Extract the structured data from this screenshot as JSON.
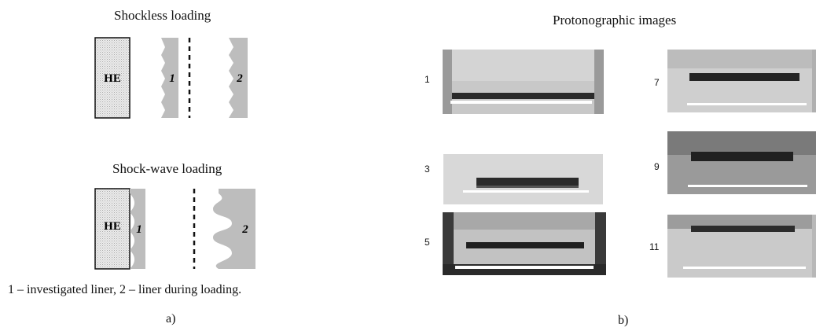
{
  "panel_a": {
    "shockless_title": "Shockless loading",
    "shockwave_title": "Shock-wave loading",
    "he_label": "HE",
    "liner1_label": "1",
    "liner2_label": "2",
    "caption": "1 – investigated liner, 2 – liner during loading.",
    "label": "a)"
  },
  "panel_b": {
    "title": "Protonographic images",
    "frames": [
      "1",
      "3",
      "5",
      "7",
      "9",
      "11"
    ],
    "label": "b)"
  },
  "colors": {
    "liner_fill": "#bdbdbd",
    "he_fill": "#e6e6e6",
    "image_bg": "#c4c4c4",
    "dark_band": "#262626",
    "white_line": "#ffffff"
  }
}
